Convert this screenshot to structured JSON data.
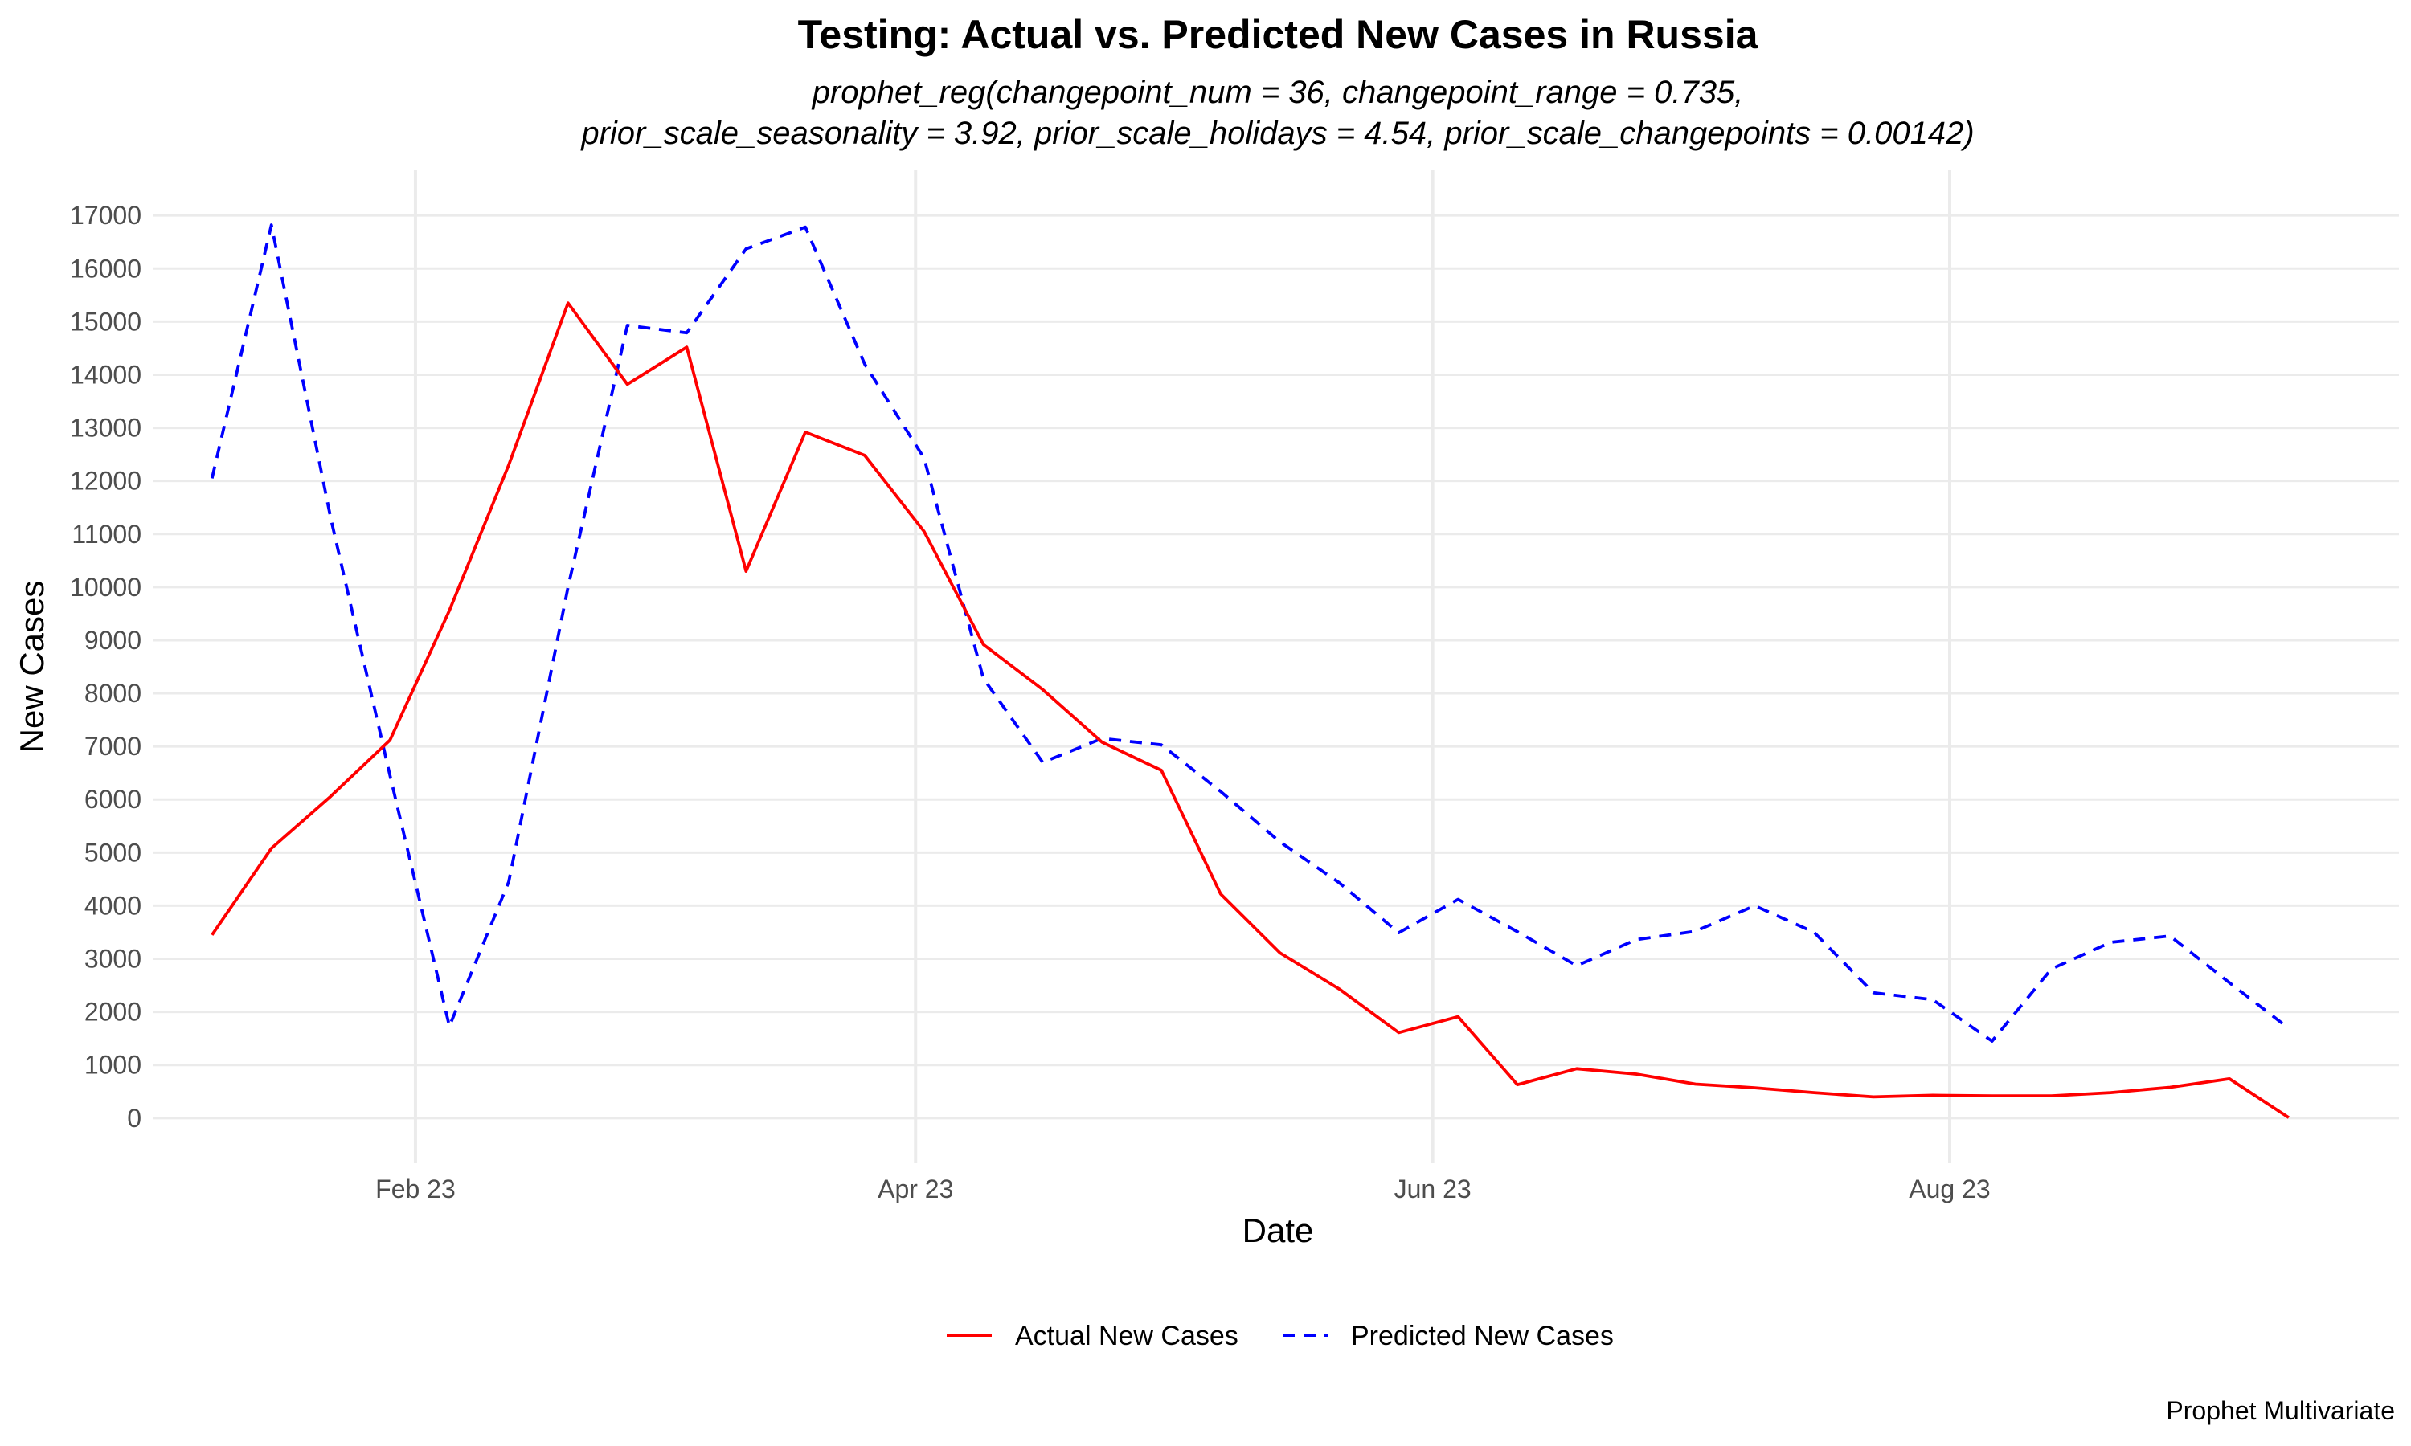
{
  "chart_data": {
    "type": "line",
    "title": "Testing: Actual vs. Predicted New Cases in Russia",
    "subtitle_lines": [
      "prophet_reg(changepoint_num = 36, changepoint_range = 0.735,",
      "prior_scale_seasonality = 3.92, prior_scale_holidays = 4.54, prior_scale_changepoints = 0.00142)"
    ],
    "xlabel": "Date",
    "ylabel": "New Cases",
    "caption": "Prophet Multivariate",
    "x_ticks": [
      {
        "label": "Feb 23",
        "date": "2023-02-01"
      },
      {
        "label": "Apr 23",
        "date": "2023-04-01"
      },
      {
        "label": "Jun 23",
        "date": "2023-06-01"
      },
      {
        "label": "Aug 23",
        "date": "2023-08-01"
      }
    ],
    "xlim": [
      "2023-01-01",
      "2023-09-23"
    ],
    "y_ticks": [
      0,
      1000,
      2000,
      3000,
      4000,
      5000,
      6000,
      7000,
      8000,
      9000,
      10000,
      11000,
      12000,
      13000,
      14000,
      15000,
      16000,
      17000
    ],
    "ylim": [
      -850,
      17850
    ],
    "grid": true,
    "legend_position": "bottom",
    "x": [
      "2023-01-08",
      "2023-01-15",
      "2023-01-22",
      "2023-01-29",
      "2023-02-05",
      "2023-02-12",
      "2023-02-19",
      "2023-02-26",
      "2023-03-05",
      "2023-03-12",
      "2023-03-19",
      "2023-03-26",
      "2023-04-02",
      "2023-04-09",
      "2023-04-16",
      "2023-04-23",
      "2023-04-30",
      "2023-05-07",
      "2023-05-14",
      "2023-05-21",
      "2023-05-28",
      "2023-06-04",
      "2023-06-11",
      "2023-06-18",
      "2023-06-25",
      "2023-07-02",
      "2023-07-09",
      "2023-07-16",
      "2023-07-23",
      "2023-07-30",
      "2023-08-06",
      "2023-08-13",
      "2023-08-20",
      "2023-08-27",
      "2023-09-03",
      "2023-09-10"
    ],
    "series": [
      {
        "name": "Actual New Cases",
        "color": "#ff0000",
        "dash": "solid",
        "values": [
          3450,
          5080,
          6060,
          7120,
          9560,
          12300,
          15350,
          13820,
          14520,
          10300,
          12920,
          12480,
          11050,
          8920,
          8070,
          7080,
          6550,
          4220,
          3110,
          2430,
          1610,
          1910,
          630,
          930,
          830,
          640,
          570,
          480,
          400,
          430,
          420,
          420,
          480,
          580,
          740,
          10
        ]
      },
      {
        "name": "Predicted New Cases",
        "color": "#0000ff",
        "dash": "dashed",
        "values": [
          12050,
          16820,
          11300,
          6450,
          1730,
          4450,
          10000,
          14930,
          14790,
          16370,
          16780,
          14200,
          12430,
          8280,
          6700,
          7150,
          7030,
          6150,
          5200,
          4430,
          3490,
          4120,
          3510,
          2870,
          3360,
          3520,
          4000,
          3500,
          2360,
          2230,
          1450,
          2810,
          3310,
          3430,
          2550,
          1690
        ]
      }
    ]
  }
}
